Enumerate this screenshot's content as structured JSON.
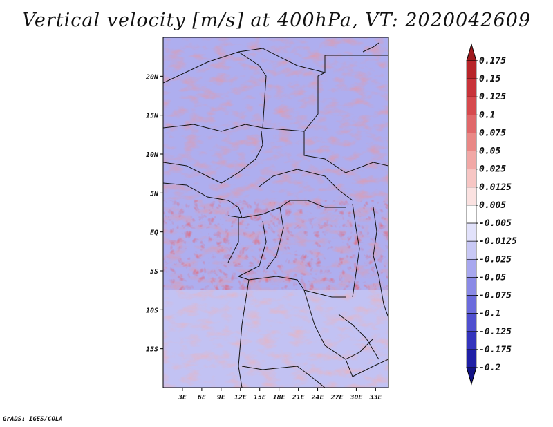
{
  "chart_data": {
    "type": "heatmap",
    "title": "Vertical velocity [m/s] at 400hPa, VT: 2020042609",
    "variable": "Vertical velocity",
    "units": "m/s",
    "level": "400hPa",
    "valid_time": "2020042609",
    "xlabel": "",
    "ylabel": "",
    "x_ticks": [
      "3E",
      "6E",
      "9E",
      "12E",
      "15E",
      "18E",
      "21E",
      "24E",
      "27E",
      "30E",
      "33E"
    ],
    "y_ticks": [
      "20N",
      "15N",
      "10N",
      "5N",
      "EQ",
      "5S",
      "10S",
      "15S"
    ],
    "lon_range": [
      0,
      35
    ],
    "lat_range": [
      -20,
      25
    ],
    "colorbar": {
      "labels": [
        "0.175",
        "0.15",
        "0.125",
        "0.1",
        "0.075",
        "0.05",
        "0.025",
        "0.0125",
        "0.005",
        "-0.005",
        "-0.0125",
        "-0.025",
        "-0.05",
        "-0.075",
        "-0.1",
        "-0.125",
        "-0.175",
        "-0.2"
      ],
      "colors": [
        "#a01a1e",
        "#b8252a",
        "#c8333a",
        "#d64a4e",
        "#e0686a",
        "#e98886",
        "#f1a8a6",
        "#f7c6c4",
        "#fbe2e1",
        "#ffffff",
        "#e2e2fb",
        "#c8c8f5",
        "#a8a8ef",
        "#8a8ae6",
        "#6b6bdc",
        "#4f4fcf",
        "#3434bd",
        "#1f1fa6",
        "#121285"
      ]
    }
  },
  "footer": "GrADS: IGES/COLA"
}
